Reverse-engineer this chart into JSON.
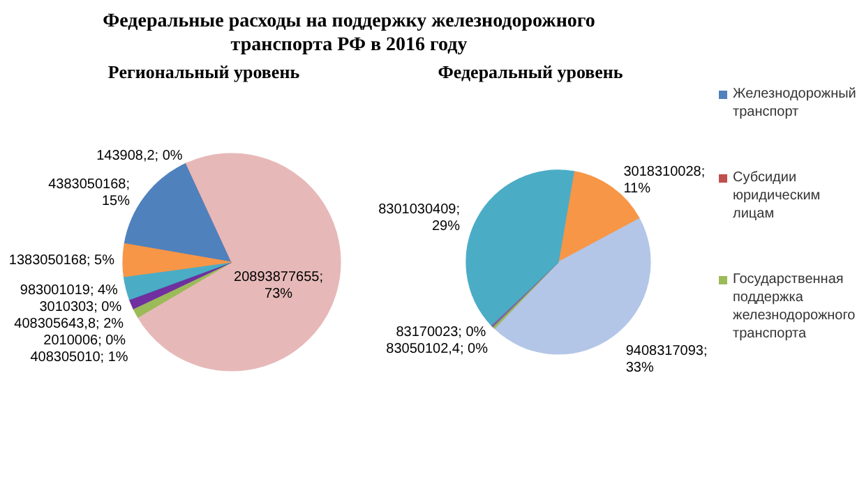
{
  "chart_data": [
    {
      "type": "pie",
      "title": "Федеральные расходы на поддержку   железнодорожного транспорта РФ   в 2016 году",
      "subtitle": "Региональный уровень",
      "categories": [
        "Железнодорожный транспорт",
        "Субсидии юридическим лицам",
        null,
        "Государственная поддержка железнодорожного транспорта",
        null,
        null,
        null,
        null,
        null
      ],
      "values": [
        4383050168,
        143908.2,
        20893877655,
        408305010,
        2010006,
        408305643.8,
        3010303,
        983001019,
        1383050168
      ],
      "colors": [
        "#4f81bd",
        "#c0504d",
        "#e6b9b8",
        "#9bbb59",
        "#8064a2",
        "#7030a0",
        "#2c4d75",
        "#4bacc6",
        "#f79646"
      ],
      "value_labels": [
        "4383050168; 15%",
        "143908,2; 0%",
        "20893877655; 73%",
        "408305010; 1%",
        "2010006; 0%",
        "408305643,8; 2%",
        "3010303; 0%",
        "983001019; 4%",
        "1383050168; 5%"
      ],
      "legend": "right"
    },
    {
      "type": "pie",
      "title": "Федеральный уровень",
      "categories": [
        null,
        null,
        null,
        null,
        null
      ],
      "values": [
        3018310028,
        9408317093,
        83050102.4,
        83170023,
        8301030409
      ],
      "colors": [
        "#f79646",
        "#b3c6e7",
        "#9bbb59",
        "#8064a2",
        "#4bacc6"
      ],
      "value_labels": [
        "3018310028; 11%",
        "9408317093; 33%",
        "83050102,4; 0%",
        "83170023; 0%",
        "8301030409; 29%"
      ]
    }
  ]
}
